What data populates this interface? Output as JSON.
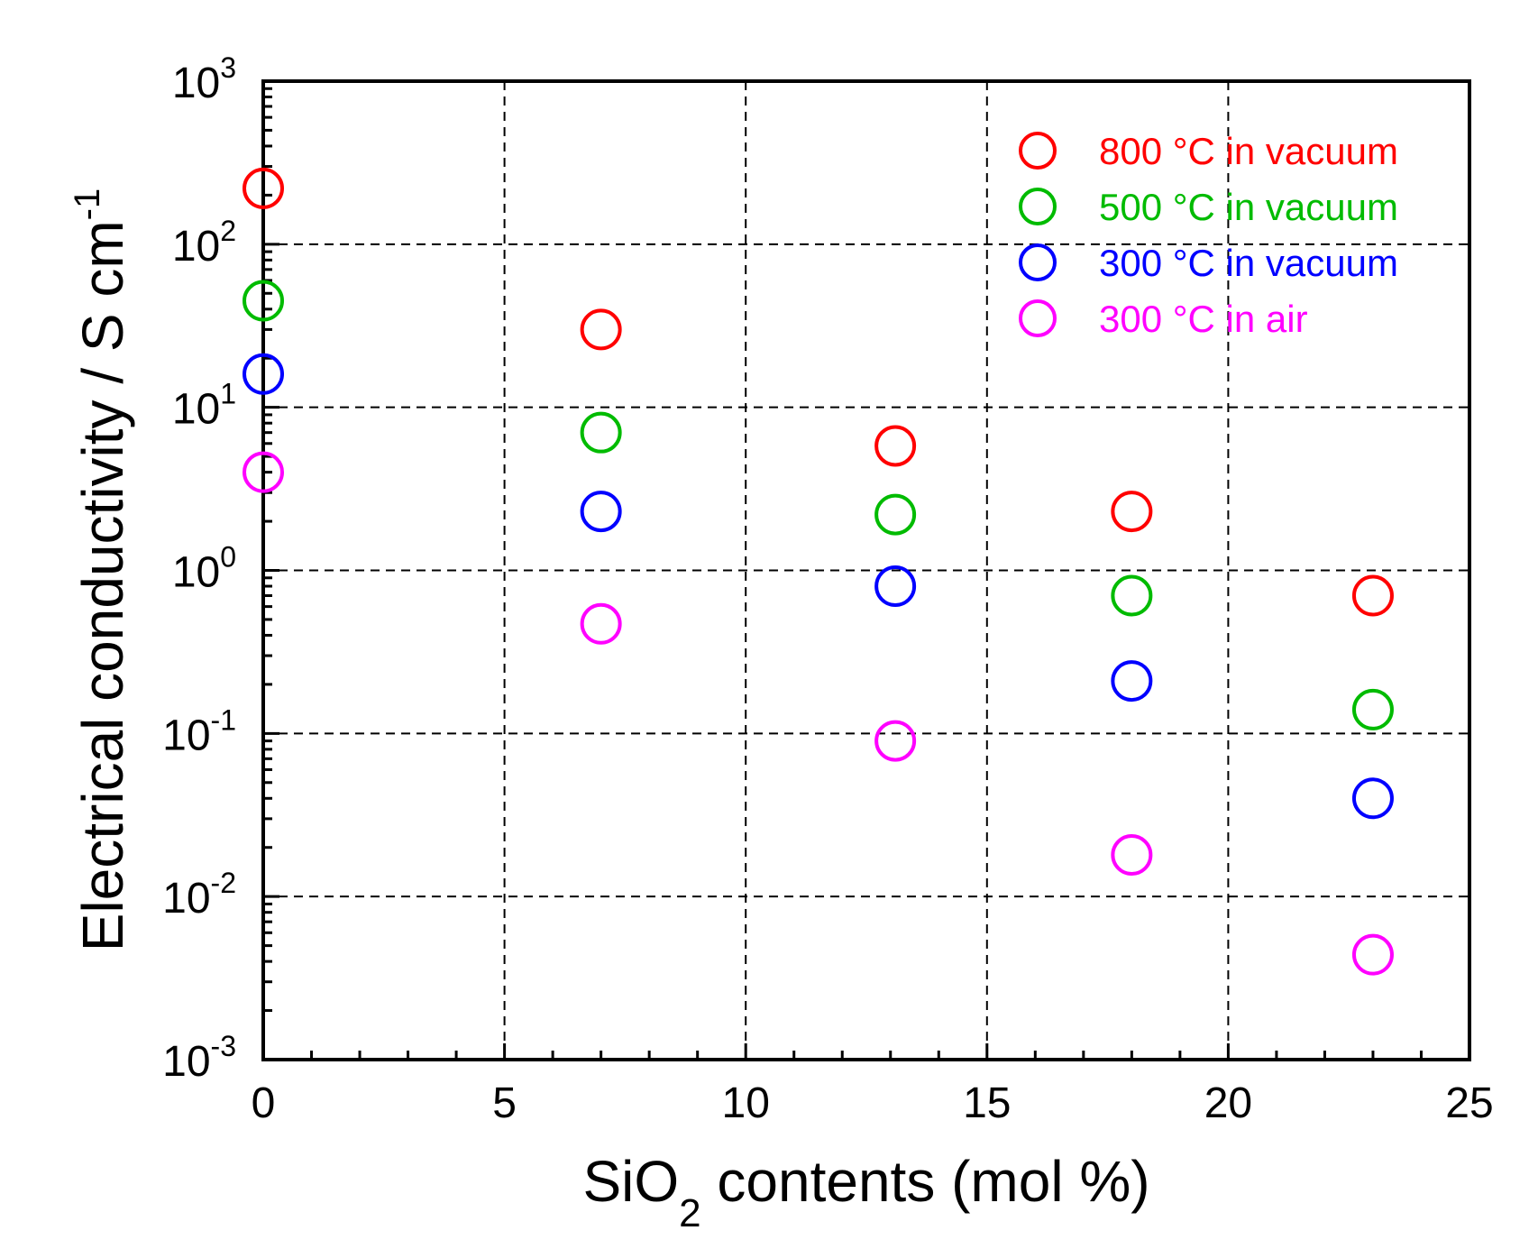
{
  "chart_data": {
    "type": "scatter",
    "title": "",
    "xlabel": {
      "main": "SiO",
      "sub": "2",
      "tail": " contents (mol %)"
    },
    "ylabel": {
      "main": "Electrical conductivity / S cm",
      "sup": "-1"
    },
    "xlim": [
      0,
      25
    ],
    "ylim_log10": [
      -3,
      3
    ],
    "yscale": "log",
    "grid": true,
    "legend_position": "top-right",
    "x_ticks": [
      "0",
      "5",
      "10",
      "15",
      "20",
      "25"
    ],
    "x_tick_values": [
      0,
      5,
      10,
      15,
      20,
      25
    ],
    "y_ticks": [
      {
        "base": "10",
        "exp": "3",
        "value": 3
      },
      {
        "base": "10",
        "exp": "2",
        "value": 2
      },
      {
        "base": "10",
        "exp": "1",
        "value": 1
      },
      {
        "base": "10",
        "exp": "0",
        "value": 0
      },
      {
        "base": "10",
        "exp": "-1",
        "value": -1
      },
      {
        "base": "10",
        "exp": "-2",
        "value": -2
      },
      {
        "base": "10",
        "exp": "-3",
        "value": -3
      }
    ],
    "x": [
      0,
      7,
      13.1,
      18,
      23
    ],
    "series": [
      {
        "name": "800 °C in vacuum",
        "color": "#ff0000",
        "values": [
          220,
          30,
          5.8,
          2.3,
          0.7
        ]
      },
      {
        "name": "500 °C in vacuum",
        "color": "#00bb00",
        "values": [
          45,
          7,
          2.2,
          0.7,
          0.14
        ]
      },
      {
        "name": "300 °C in vacuum",
        "color": "#0000ff",
        "values": [
          16,
          2.3,
          0.8,
          0.21,
          0.04
        ]
      },
      {
        "name": "300 °C in air",
        "color": "#ff00ff",
        "values": [
          4,
          0.47,
          0.09,
          0.018,
          0.0044
        ]
      }
    ]
  }
}
